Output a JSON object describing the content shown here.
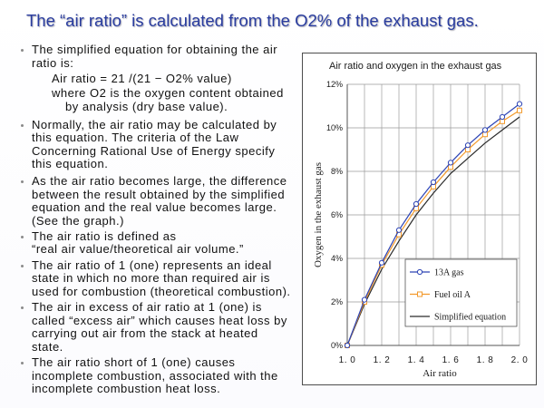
{
  "theme": {
    "title_color": "#2a3d9f",
    "text_color": "#111111"
  },
  "slide": {
    "title": "The “air ratio” is calculated from the O2% of the exhaust gas.",
    "bullets": [
      {
        "lines": [
          "The simplified equation for obtaining the air",
          "ratio is:"
        ],
        "equation": "Air ratio = 21 /(21 − O2% value)",
        "note_lines": [
          "where O2 is the oxygen content obtained",
          "by analysis (dry base value)."
        ]
      },
      {
        "lines": [
          "Normally, the air ratio may be calculated by",
          "this equation. The criteria of the Law",
          "Concerning Rational Use of Energy specify",
          "this equation."
        ]
      },
      {
        "lines": [
          "As the air ratio becomes large, the difference",
          "between the result obtained by the simplified",
          "equation and the real value becomes large.",
          "(See the graph.)"
        ]
      },
      {
        "lines": [
          "The air ratio is defined as",
          "“real air value/theoretical air volume.”"
        ]
      },
      {
        "lines": [
          "The air ratio of 1 (one) represents an ideal",
          "state in which no more than required air is",
          "used for combustion (theoretical combustion)."
        ]
      },
      {
        "lines": [
          "The air in excess of air ratio at 1 (one) is",
          "called “excess air” which causes heat loss by",
          "carrying out air from the stack at heated",
          "state."
        ]
      },
      {
        "lines": [
          "The air ratio short of 1 (one) causes",
          "incomplete combustion, associated with the",
          "incomplete combustion heat loss."
        ]
      }
    ]
  },
  "chart_data": {
    "type": "line",
    "title": "Air ratio and oxygen in the exhaust gas",
    "xlabel": "Air ratio",
    "ylabel": "Oxygen in the exhaust gas",
    "x": [
      1.0,
      1.1,
      1.2,
      1.3,
      1.4,
      1.5,
      1.6,
      1.7,
      1.8,
      1.9,
      2.0
    ],
    "xlim": [
      1.0,
      2.0
    ],
    "ylim": [
      0,
      12
    ],
    "x_ticks": [
      1.0,
      1.2,
      1.4,
      1.6,
      1.8,
      2.0
    ],
    "x_tick_labels": [
      "1. 0",
      "1. 2",
      "1. 4",
      "1. 6",
      "1. 8",
      "2. 0"
    ],
    "y_ticks": [
      0,
      2,
      4,
      6,
      8,
      10,
      12
    ],
    "y_tick_labels": [
      "0%",
      "2%",
      "4%",
      "6%",
      "8%",
      "10%",
      "12%"
    ],
    "grid": true,
    "legend": "bottom-right",
    "series": [
      {
        "name": "13A gas",
        "color": "#2d44b5",
        "marker": "circle",
        "values": [
          0,
          2.1,
          3.8,
          5.3,
          6.5,
          7.5,
          8.4,
          9.2,
          9.9,
          10.5,
          11.1
        ]
      },
      {
        "name": "Fuel oil A",
        "color": "#f2992b",
        "marker": "square",
        "values": [
          0,
          2.0,
          3.7,
          5.1,
          6.3,
          7.3,
          8.2,
          9.0,
          9.7,
          10.3,
          10.8
        ]
      },
      {
        "name": "Simplified equation",
        "color": "#2a2a2a",
        "marker": "none",
        "values": [
          0,
          1.9,
          3.5,
          4.8,
          6.0,
          7.0,
          7.9,
          8.6,
          9.3,
          9.9,
          10.5
        ]
      }
    ]
  }
}
